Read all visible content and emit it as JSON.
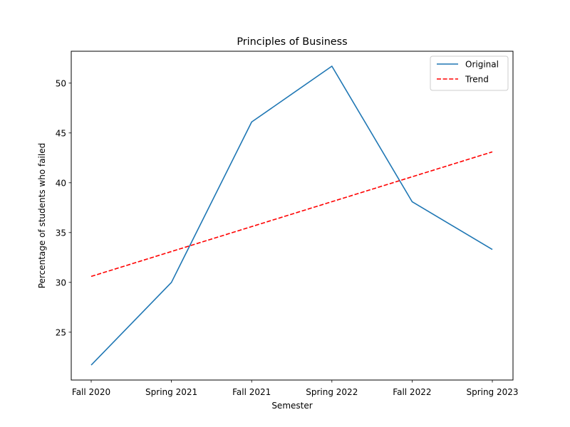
{
  "chart_data": {
    "type": "line",
    "title": "Principles of Business",
    "xlabel": "Semester",
    "ylabel": "Percentage of students who failed",
    "categories": [
      "Fall 2020",
      "Spring 2021",
      "Fall 2021",
      "Spring 2022",
      "Fall 2022",
      "Spring 2023"
    ],
    "series": [
      {
        "name": "Original",
        "values": [
          21.7,
          30.0,
          46.1,
          51.7,
          38.1,
          33.3
        ],
        "color": "#1f77b4",
        "style": "solid"
      },
      {
        "name": "Trend",
        "values": [
          30.6,
          33.1,
          35.6,
          38.1,
          40.6,
          43.1
        ],
        "color": "#ff0000",
        "style": "dashed"
      }
    ],
    "yticks": [
      25,
      30,
      35,
      40,
      45,
      50
    ],
    "ylim": [
      20.2,
      53.2
    ],
    "grid": false,
    "legend_position": "top-right"
  }
}
